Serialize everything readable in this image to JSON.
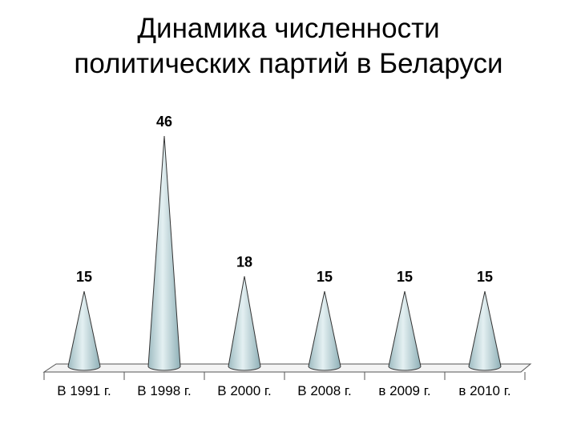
{
  "chart_data": {
    "type": "cone",
    "title": "Динамика численности политических партий в Беларуси",
    "categories": [
      "В 1991 г.",
      "В 1998 г.",
      "В 2000 г.",
      "В 2008 г.",
      "в 2009 г.",
      "в 2010 г."
    ],
    "values": [
      15,
      46,
      18,
      15,
      15,
      15
    ],
    "color": "#c9dde1"
  }
}
